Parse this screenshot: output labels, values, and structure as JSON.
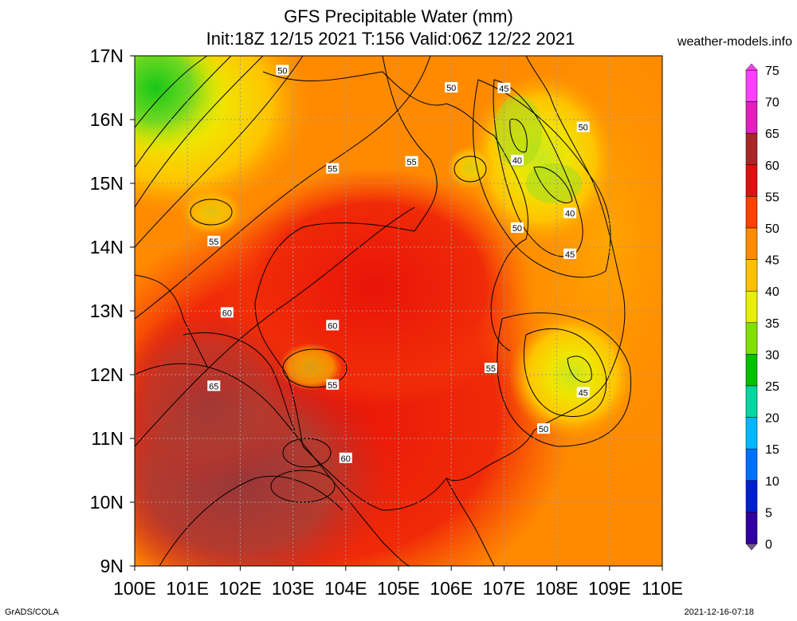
{
  "header": {
    "title_line1": "GFS Precipitable Water (mm)",
    "title_line2": "Init:18Z 12/15 2021 T:156 Valid:06Z 12/22 2021",
    "brand": "weather-models.info"
  },
  "footer": {
    "credit": "GrADS/COLA",
    "timestamp": "2021-12-16-07:18"
  },
  "map": {
    "lat_labels": [
      "17N",
      "16N",
      "15N",
      "14N",
      "13N",
      "12N",
      "11N",
      "10N",
      "9N"
    ],
    "lon_labels": [
      "100E",
      "101E",
      "102E",
      "103E",
      "104E",
      "105E",
      "106E",
      "107E",
      "108E",
      "109E",
      "110E"
    ],
    "contour_labels": [
      {
        "text": "50",
        "lon": 102.8,
        "lat": 16.77
      },
      {
        "text": "50",
        "lon": 106.0,
        "lat": 16.5
      },
      {
        "text": "45",
        "lon": 107.0,
        "lat": 16.49
      },
      {
        "text": "50",
        "lon": 108.5,
        "lat": 15.88
      },
      {
        "text": "40",
        "lon": 107.25,
        "lat": 15.36
      },
      {
        "text": "55",
        "lon": 103.75,
        "lat": 15.23
      },
      {
        "text": "55",
        "lon": 105.25,
        "lat": 15.34
      },
      {
        "text": "40",
        "lon": 108.25,
        "lat": 14.53
      },
      {
        "text": "50",
        "lon": 107.25,
        "lat": 14.3
      },
      {
        "text": "55",
        "lon": 101.5,
        "lat": 14.09
      },
      {
        "text": "45",
        "lon": 108.25,
        "lat": 13.89
      },
      {
        "text": "60",
        "lon": 101.75,
        "lat": 12.97
      },
      {
        "text": "60",
        "lon": 103.75,
        "lat": 12.77
      },
      {
        "text": "55",
        "lon": 106.75,
        "lat": 12.1
      },
      {
        "text": "55",
        "lon": 103.75,
        "lat": 11.84
      },
      {
        "text": "65",
        "lon": 101.5,
        "lat": 11.82
      },
      {
        "text": "45",
        "lon": 108.5,
        "lat": 11.72
      },
      {
        "text": "50",
        "lon": 107.75,
        "lat": 11.15
      },
      {
        "text": "60",
        "lon": 104.0,
        "lat": 10.69
      }
    ]
  },
  "legend": {
    "units": "mm",
    "levels": [
      {
        "value": "75",
        "color": "#ff40ff"
      },
      {
        "value": "70",
        "color": "#e020c0"
      },
      {
        "value": "65",
        "color": "#a82828"
      },
      {
        "value": "60",
        "color": "#e01010"
      },
      {
        "value": "55",
        "color": "#ff4000"
      },
      {
        "value": "50",
        "color": "#ff8c00"
      },
      {
        "value": "45",
        "color": "#ffc000"
      },
      {
        "value": "40",
        "color": "#e8f000"
      },
      {
        "value": "35",
        "color": "#80e000"
      },
      {
        "value": "30",
        "color": "#00c000"
      },
      {
        "value": "25",
        "color": "#00d8a0"
      },
      {
        "value": "20",
        "color": "#00b8ff"
      },
      {
        "value": "15",
        "color": "#0070ff"
      },
      {
        "value": "10",
        "color": "#0020d0"
      },
      {
        "value": "5",
        "color": "#3000a0"
      },
      {
        "value": "0",
        "color": "#6e5a8a"
      }
    ]
  }
}
